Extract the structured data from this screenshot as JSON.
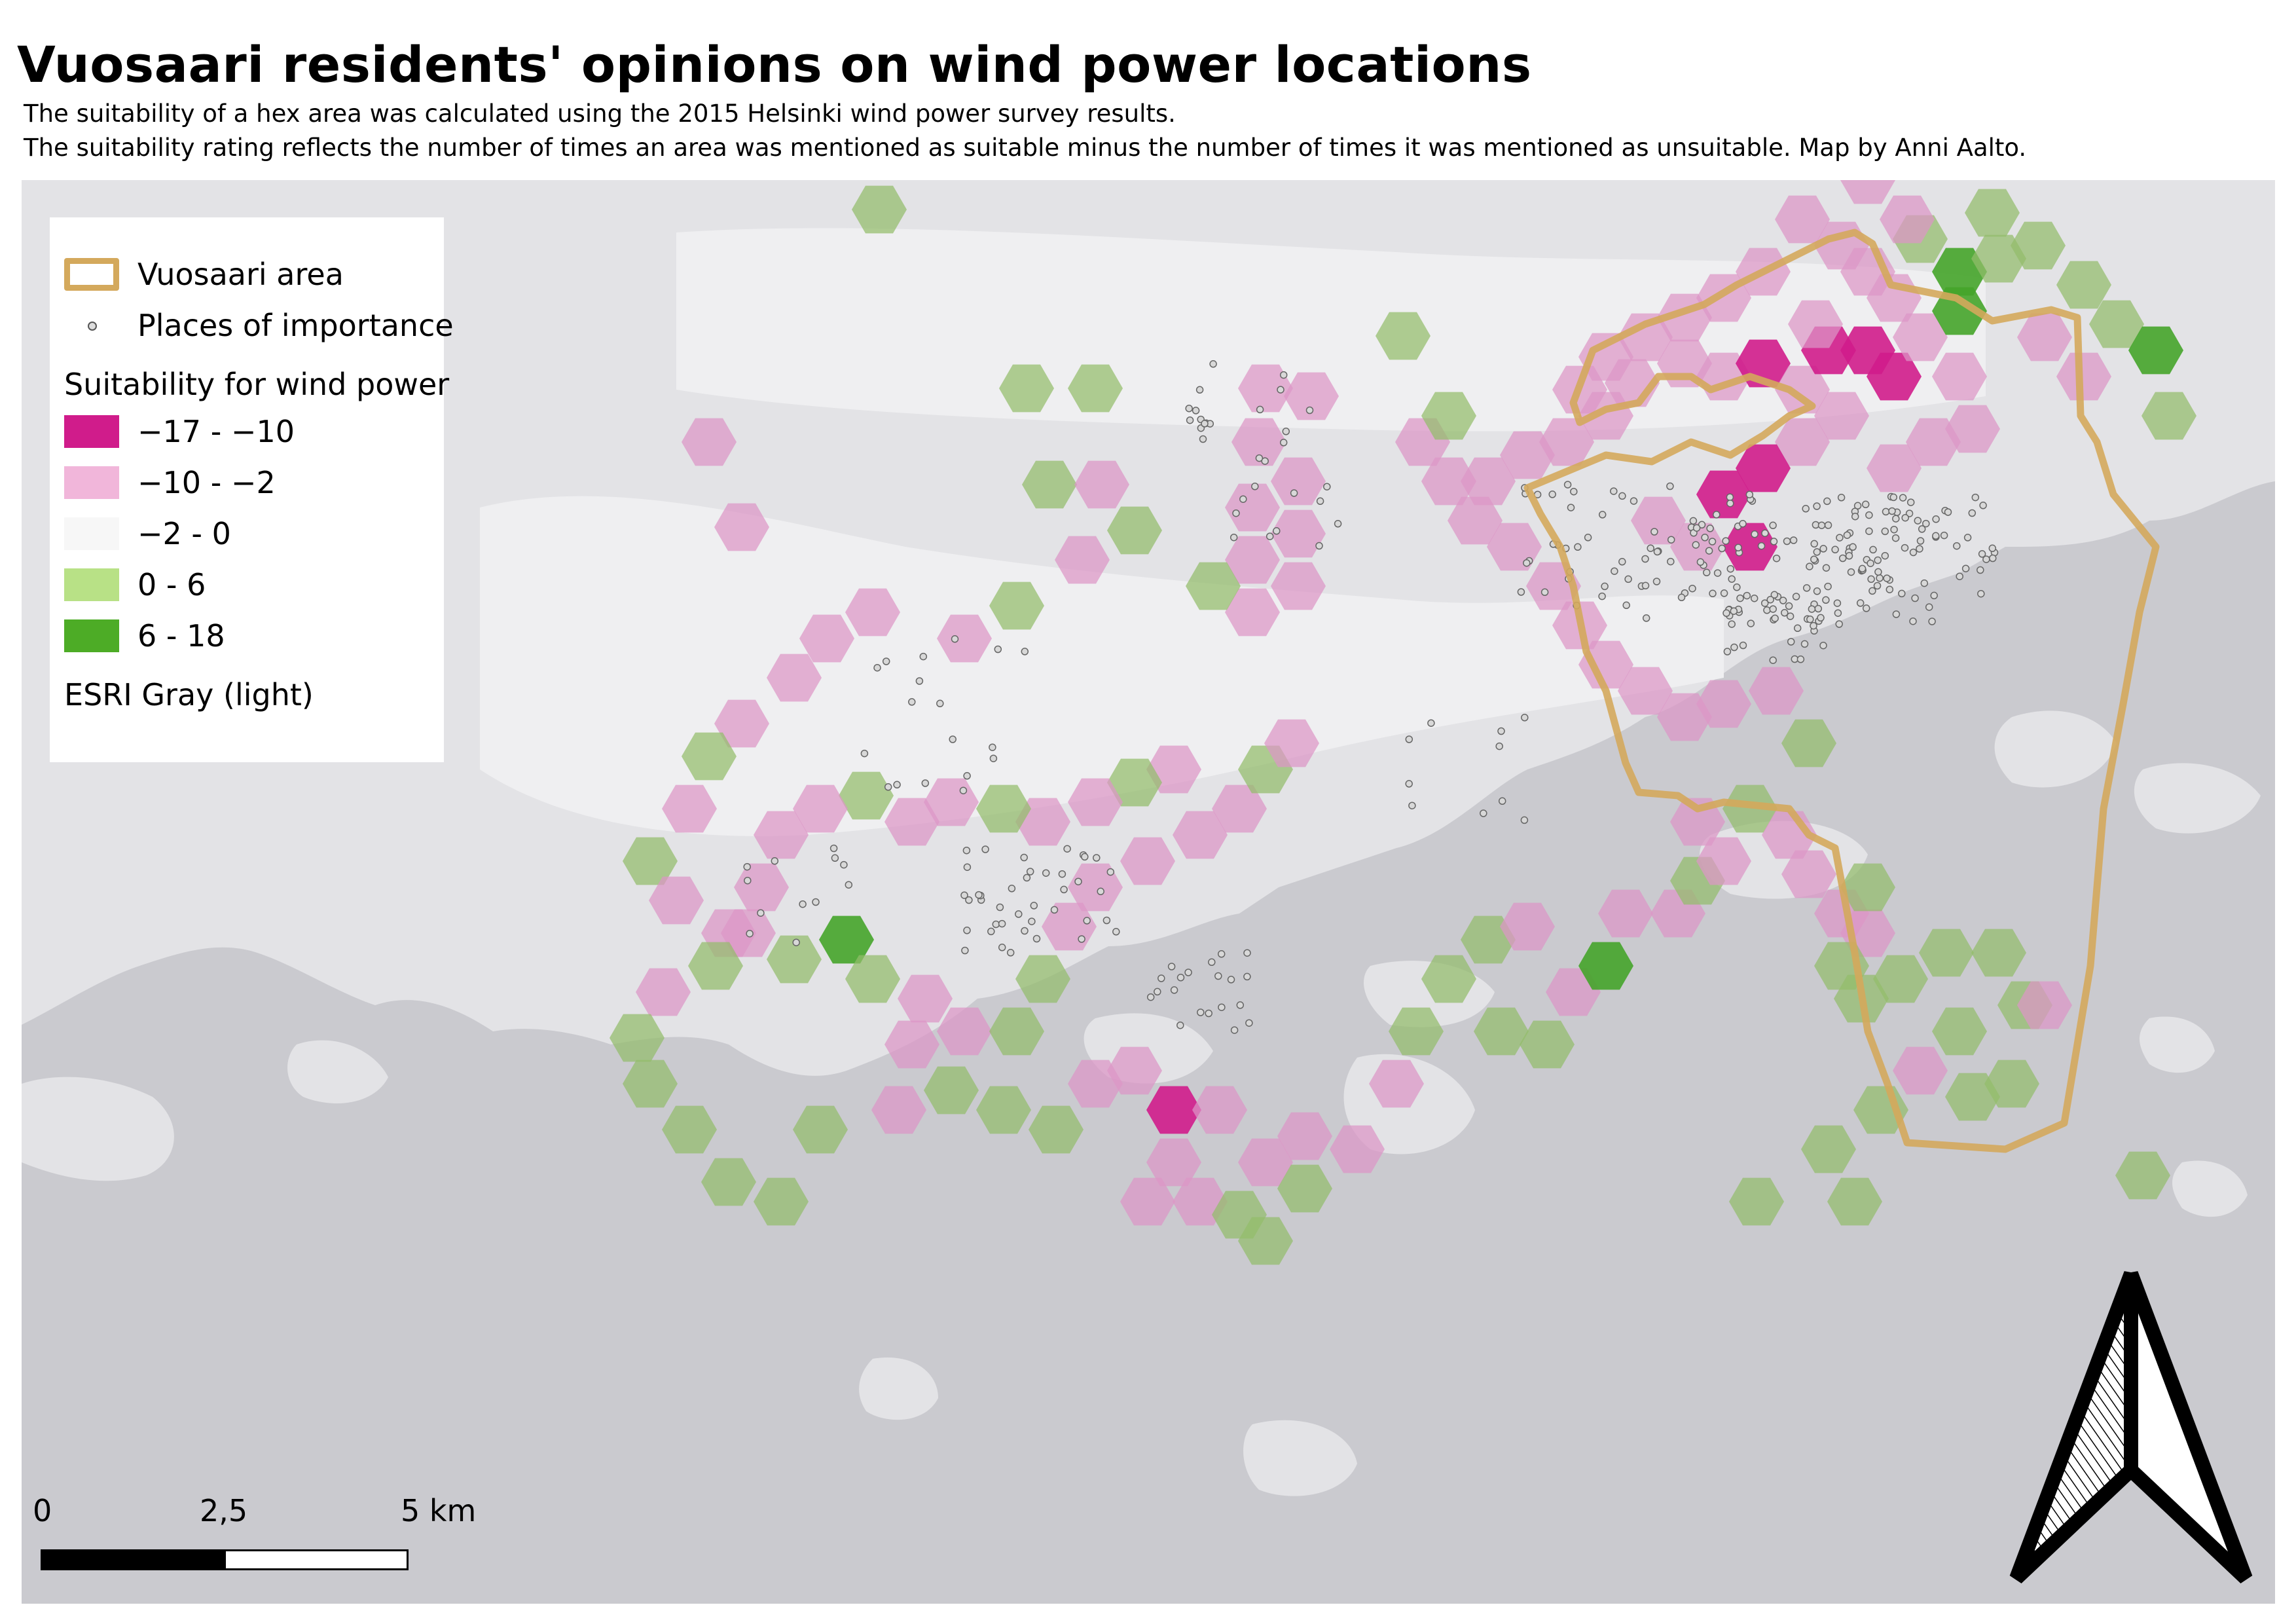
{
  "title": "Vuosaari residents' opinions on wind power locations",
  "subtitle_lines": [
    "The suitability of a hex area was calculated using the 2015 Helsinki wind power survey results.",
    "The suitability rating reflects the number of times an area was mentioned as suitable minus the number of times it was mentioned as unsuitable. Map by Anni Aalto."
  ],
  "legend": {
    "area_label": "Vuosaari area",
    "places_label": "Places of importance",
    "suitability_heading": "Suitability for wind power",
    "classes": [
      {
        "label": "−17 - −10",
        "color": "#d01c8b"
      },
      {
        "label": "−10 - −2",
        "color": "#f1b6da"
      },
      {
        "label": "−2 - 0",
        "color": "#f7f7f7"
      },
      {
        "label": "0 - 6",
        "color": "#b8e186"
      },
      {
        "label": "6 - 18",
        "color": "#4dac26"
      }
    ],
    "basemap_label": "ESRI Gray (light)"
  },
  "scale_bar": {
    "labels": [
      "0",
      "2,5",
      "5 km"
    ]
  },
  "colors": {
    "water": "#cacacf",
    "land": "#e3e3e6",
    "urban": "#efeff1",
    "area_outline": "#d4a95c",
    "strong_negative": "#d01c8b",
    "negative": "#dc95c6",
    "positive": "#93bd6b",
    "strong_positive": "#45a42a"
  },
  "icons": {
    "north_arrow": "north-arrow-icon"
  }
}
